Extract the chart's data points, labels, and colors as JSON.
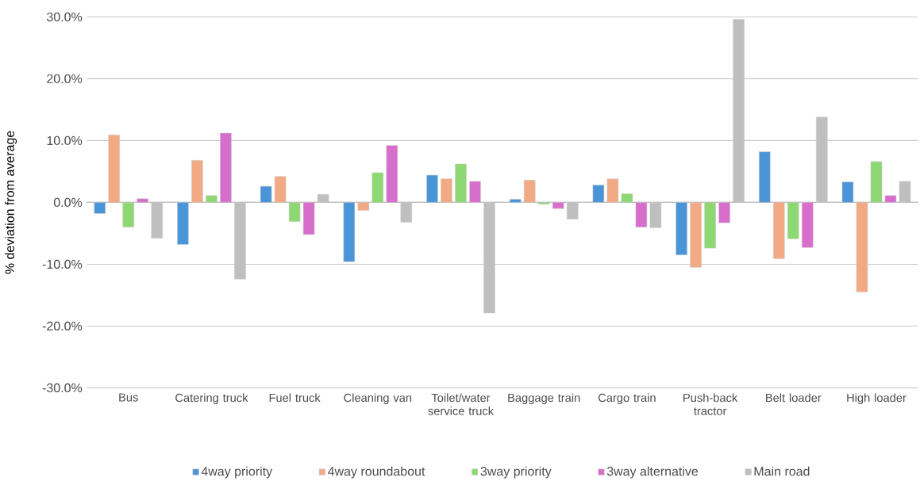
{
  "chart_data": {
    "type": "bar",
    "ylabel": "% deviation from average",
    "categories": [
      "Bus",
      "Catering truck",
      "Fuel truck",
      "Cleaning van",
      "Toilet/water service truck",
      "Baggage train",
      "Cargo train",
      "Push-back tractor",
      "Belt loader",
      "High loader"
    ],
    "series": [
      {
        "name": "4way priority",
        "color": "#4a94d8",
        "values": [
          -1.8,
          -6.8,
          2.6,
          -9.6,
          4.4,
          0.5,
          2.8,
          -8.5,
          8.2,
          3.3
        ]
      },
      {
        "name": "4way roundabout",
        "color": "#f2aa84",
        "values": [
          10.9,
          6.8,
          4.2,
          -1.3,
          3.8,
          3.6,
          3.8,
          -10.5,
          -9.1,
          -14.5
        ]
      },
      {
        "name": "3way priority",
        "color": "#8ed873",
        "values": [
          -4.0,
          1.1,
          -3.1,
          4.8,
          6.2,
          -0.3,
          1.4,
          -7.4,
          -5.9,
          6.6
        ]
      },
      {
        "name": "3way alternative",
        "color": "#d86ecc",
        "values": [
          0.6,
          11.2,
          -5.2,
          9.2,
          3.4,
          -1.0,
          -4.0,
          -3.3,
          -7.3,
          1.1
        ]
      },
      {
        "name": "Main road",
        "color": "#bfbfbf",
        "values": [
          -5.8,
          -12.4,
          1.3,
          -3.2,
          -17.9,
          -2.7,
          -4.1,
          29.6,
          13.8,
          3.4
        ]
      }
    ],
    "ylim": [
      -30,
      30
    ],
    "yticks": [
      {
        "value": -30,
        "label": "-30.0%"
      },
      {
        "value": -20,
        "label": "-20.0%"
      },
      {
        "value": -10,
        "label": "-10.0%"
      },
      {
        "value": 0,
        "label": "0.0%"
      },
      {
        "value": 10,
        "label": "10.0%"
      },
      {
        "value": 20,
        "label": "20.0%"
      },
      {
        "value": 30,
        "label": "30.0%"
      }
    ],
    "grid": "y",
    "legend": "bottom"
  }
}
